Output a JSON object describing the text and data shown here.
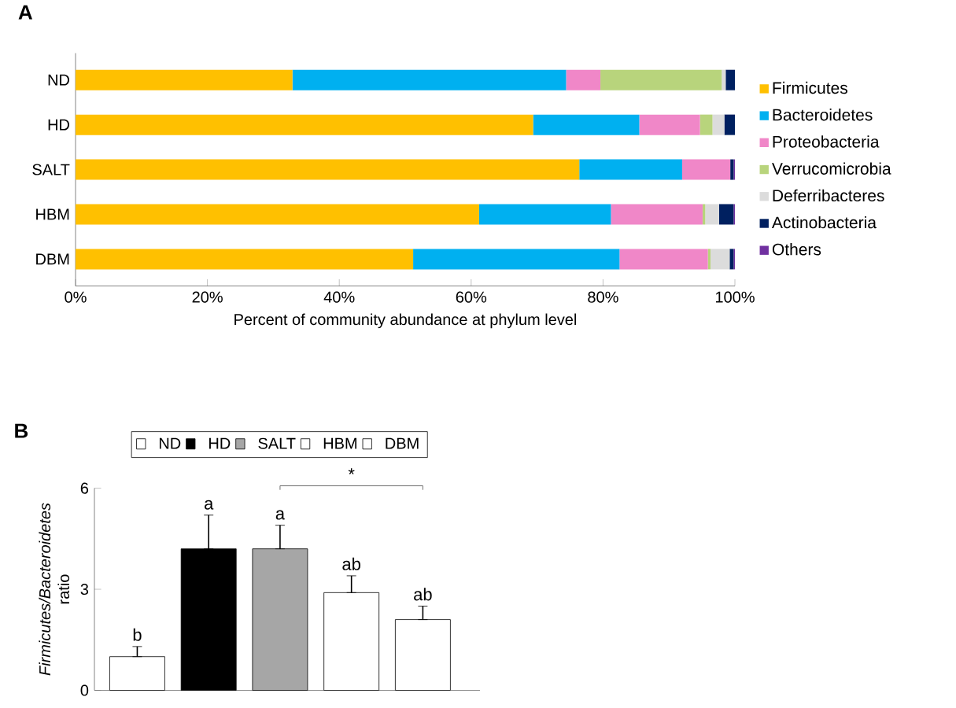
{
  "chart_data": [
    {
      "type": "bar",
      "title": "A",
      "orientation": "horizontal",
      "stacked": true,
      "xlabel": "Percent of community abundance at phylum level",
      "categories": [
        "ND",
        "HD",
        "SALT",
        "HBM",
        "DBM"
      ],
      "series": [
        {
          "name": "Firmicutes",
          "color": "#ffc000",
          "values": [
            32.9,
            69.4,
            76.4,
            61.2,
            51.2
          ]
        },
        {
          "name": "Bacteroidetes",
          "color": "#00b0f0",
          "values": [
            41.5,
            16.1,
            15.6,
            20.0,
            31.3
          ]
        },
        {
          "name": "Proteobacteria",
          "color": "#f087c8",
          "values": [
            5.2,
            9.2,
            7.3,
            13.9,
            13.4
          ]
        },
        {
          "name": "Verrucomicrobia",
          "color": "#b8d47c",
          "values": [
            18.4,
            1.9,
            0,
            0.4,
            0.4
          ]
        },
        {
          "name": "Deferribacteres",
          "color": "#dcdcdc",
          "values": [
            0.6,
            1.8,
            0,
            2.1,
            2.9
          ]
        },
        {
          "name": "Actinobacteria",
          "color": "#002060",
          "values": [
            1.4,
            1.6,
            0.5,
            2.2,
            0.6
          ]
        },
        {
          "name": "Others",
          "color": "#7030a0",
          "values": [
            0,
            0,
            0.2,
            0.2,
            0.2
          ]
        }
      ],
      "xlim": [
        0,
        100
      ],
      "xticks": [
        {
          "value": 0,
          "label": "0%"
        },
        {
          "value": 20,
          "label": "20%"
        },
        {
          "value": 40,
          "label": "40%"
        },
        {
          "value": 60,
          "label": "60%"
        },
        {
          "value": 80,
          "label": "80%"
        },
        {
          "value": 100,
          "label": "100%"
        }
      ],
      "legend": "right"
    },
    {
      "type": "bar",
      "title": "B",
      "ylabel": "*Firmicutes/Bacteroidetes* ratio",
      "categories": [
        null,
        null,
        null,
        null,
        null
      ],
      "series": [
        {
          "name": "ND",
          "color": "#ffffff",
          "values": [
            1.0,
            null,
            null,
            null,
            null
          ],
          "errors": [
            [
              1.0,
              1.3
            ],
            null,
            null,
            null,
            null
          ]
        },
        {
          "name": "HD",
          "color": "#000000",
          "values": [
            null,
            4.2,
            null,
            null,
            null
          ],
          "errors": [
            null,
            [
              4.2,
              5.2
            ],
            null,
            null,
            null
          ]
        },
        {
          "name": "SALT",
          "color": "#a6a6a6",
          "values": [
            null,
            null,
            4.2,
            null,
            null
          ],
          "errors": [
            null,
            null,
            [
              4.2,
              4.9
            ],
            null,
            null
          ]
        },
        {
          "name": "HBM",
          "color": "#ffffff",
          "values": [
            null,
            null,
            null,
            2.9,
            null
          ],
          "errors": [
            null,
            null,
            null,
            [
              2.9,
              3.4
            ],
            null
          ]
        },
        {
          "name": "DBM",
          "color": "#ffffff",
          "values": [
            null,
            null,
            null,
            null,
            2.1
          ],
          "errors": [
            null,
            null,
            null,
            null,
            [
              2.1,
              2.5
            ]
          ]
        }
      ],
      "ylim": [
        0,
        6
      ],
      "yticks": [
        0,
        3,
        6
      ],
      "annotations": [
        "b",
        "a",
        "a",
        "ab",
        "ab",
        "*"
      ],
      "legend": "top"
    }
  ]
}
